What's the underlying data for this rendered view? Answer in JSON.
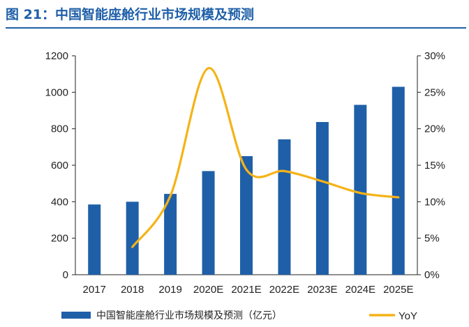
{
  "title": "图 21：中国智能座舱行业市场规模及预测",
  "colors": {
    "bar": "#1f5fa8",
    "line": "#f5b317",
    "title": "#1f5fa8",
    "axis": "#222222"
  },
  "chart_data": {
    "type": "bar",
    "categories": [
      "2017",
      "2018",
      "2019",
      "2020E",
      "2021E",
      "2022E",
      "2023E",
      "2024E",
      "2025E"
    ],
    "series": [
      {
        "name": "中国智能座舱行业市场规模及预测（亿元）",
        "type": "bar",
        "axis": "left",
        "values": [
          385,
          400,
          443,
          568,
          650,
          742,
          837,
          931,
          1030
        ]
      },
      {
        "name": "YoY",
        "type": "line",
        "axis": "right",
        "values": [
          null,
          3.8,
          10.8,
          28.3,
          14.4,
          14.2,
          12.8,
          11.2,
          10.6
        ]
      }
    ],
    "ylim": [
      0,
      1200
    ],
    "yticks": [
      0,
      200,
      400,
      600,
      800,
      1000,
      1200
    ],
    "y2lim": [
      0,
      30
    ],
    "y2ticks": [
      "0%",
      "5%",
      "10%",
      "15%",
      "20%",
      "25%",
      "30%"
    ],
    "legend_position": "bottom",
    "grid": false
  }
}
